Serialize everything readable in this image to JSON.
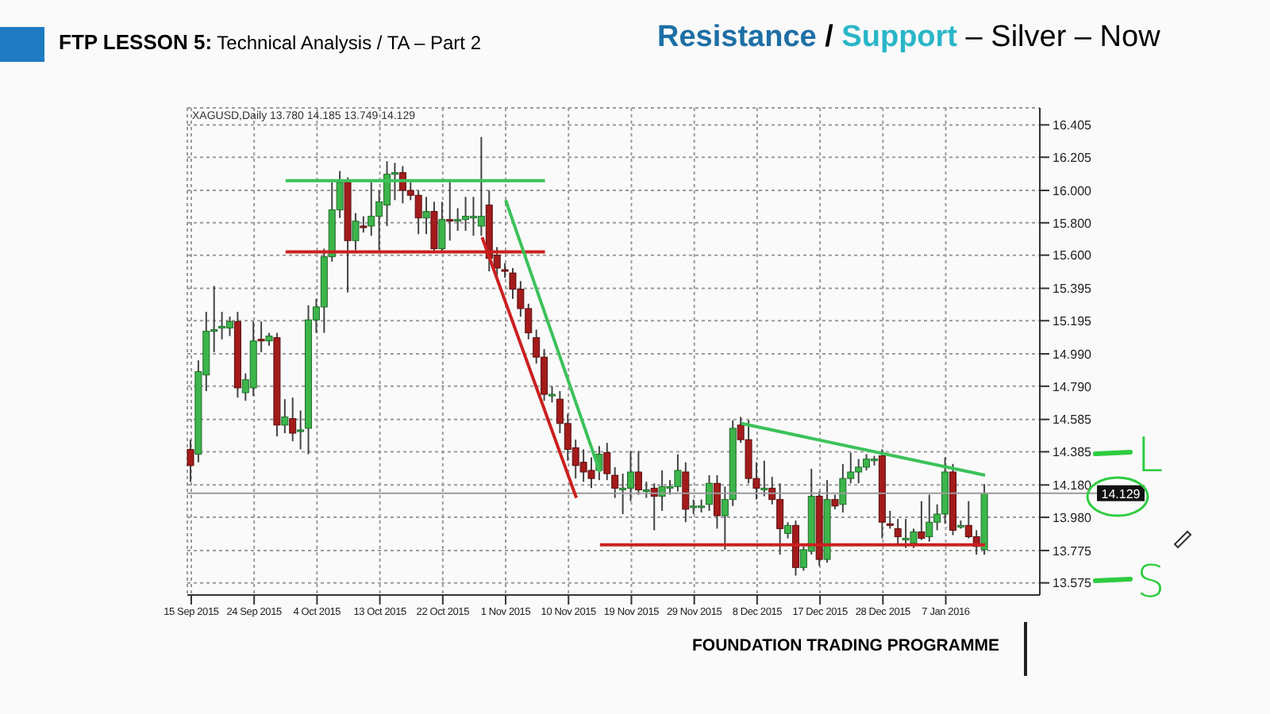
{
  "chart_data": {
    "type": "candlestick",
    "title": "Resistance / Support – Silver – Now",
    "subtitle": "FTP LESSON 5: Technical Analysis / TA – Part 2",
    "annotations": [
      "XAGUSD,Daily 13.780 14.185 13.749 14.129",
      "FOUNDATION TRADING PROGRAMME",
      "L",
      "S"
    ],
    "categories": [
      "15 Sep 2015",
      null,
      null,
      null,
      null,
      null,
      null,
      null,
      "24 Sep 2015",
      null,
      null,
      null,
      null,
      null,
      null,
      null,
      "4 Oct 2015",
      null,
      null,
      null,
      null,
      null,
      null,
      null,
      "13 Oct 2015",
      null,
      null,
      null,
      null,
      null,
      null,
      null,
      "22 Oct 2015",
      null,
      null,
      null,
      null,
      null,
      null,
      null,
      "1 Nov 2015",
      null,
      null,
      null,
      null,
      null,
      null,
      null,
      "10 Nov 2015",
      null,
      null,
      null,
      null,
      null,
      null,
      null,
      "19 Nov 2015",
      null,
      null,
      null,
      null,
      null,
      null,
      null,
      "29 Nov 2015",
      null,
      null,
      null,
      null,
      null,
      null,
      null,
      "8 Dec 2015",
      null,
      null,
      null,
      null,
      null,
      null,
      null,
      "17 Dec 2015",
      null,
      null,
      null,
      null,
      null,
      null,
      null,
      "28 Dec 2015",
      null,
      null,
      null,
      null,
      null,
      null,
      null,
      "7 Jan 2016",
      null,
      null,
      null,
      null,
      null
    ],
    "ohlc": [
      [
        14.4,
        14.46,
        14.2,
        14.3
      ],
      [
        14.37,
        14.95,
        14.32,
        14.88
      ],
      [
        14.86,
        15.25,
        14.76,
        15.13
      ],
      [
        15.13,
        15.41,
        15.0,
        15.14
      ],
      [
        15.15,
        15.25,
        15.08,
        15.16
      ],
      [
        15.15,
        15.22,
        15.1,
        15.19
      ],
      [
        15.19,
        15.25,
        14.72,
        14.78
      ],
      [
        14.75,
        14.87,
        14.7,
        14.83
      ],
      [
        14.78,
        15.19,
        14.73,
        15.07
      ],
      [
        15.08,
        15.19,
        15.0,
        15.07
      ],
      [
        15.07,
        15.12,
        15.04,
        15.1
      ],
      [
        15.09,
        15.12,
        14.48,
        14.55
      ],
      [
        14.55,
        14.71,
        14.5,
        14.6
      ],
      [
        14.59,
        14.72,
        14.45,
        14.5
      ],
      [
        14.51,
        14.64,
        14.4,
        14.52
      ],
      [
        14.53,
        15.29,
        14.37,
        15.2
      ],
      [
        15.2,
        15.33,
        15.12,
        15.28
      ],
      [
        15.28,
        15.64,
        15.12,
        15.59
      ],
      [
        15.59,
        16.05,
        15.56,
        15.88
      ],
      [
        15.88,
        16.12,
        15.83,
        16.05
      ],
      [
        16.05,
        16.08,
        15.37,
        15.69
      ],
      [
        15.69,
        15.86,
        15.63,
        15.81
      ],
      [
        15.78,
        15.84,
        15.74,
        15.77
      ],
      [
        15.78,
        16.05,
        15.72,
        15.84
      ],
      [
        15.84,
        16.0,
        15.63,
        15.93
      ],
      [
        15.91,
        16.18,
        15.78,
        16.1
      ],
      [
        16.1,
        16.17,
        15.94,
        16.11
      ],
      [
        16.11,
        16.15,
        15.92,
        16.0
      ],
      [
        16.0,
        16.05,
        15.94,
        15.97
      ],
      [
        15.97,
        16.0,
        15.73,
        15.83
      ],
      [
        15.83,
        15.96,
        15.73,
        15.87
      ],
      [
        15.87,
        15.93,
        15.62,
        15.64
      ],
      [
        15.64,
        15.93,
        15.62,
        15.82
      ],
      [
        15.82,
        16.07,
        15.69,
        15.81
      ],
      [
        15.82,
        15.89,
        15.75,
        15.82
      ],
      [
        15.82,
        15.96,
        15.75,
        15.84
      ],
      [
        15.84,
        15.96,
        15.72,
        15.84
      ],
      [
        15.78,
        16.33,
        15.72,
        15.84
      ],
      [
        15.91,
        16.0,
        15.5,
        15.58
      ],
      [
        15.6,
        15.65,
        15.47,
        15.52
      ],
      [
        15.51,
        15.55,
        15.46,
        15.5
      ],
      [
        15.49,
        15.52,
        15.33,
        15.39
      ],
      [
        15.39,
        15.44,
        15.22,
        15.27
      ],
      [
        15.27,
        15.3,
        15.08,
        15.12
      ],
      [
        15.09,
        15.14,
        14.93,
        14.97
      ],
      [
        14.97,
        15.02,
        14.7,
        14.74
      ],
      [
        14.74,
        14.79,
        14.69,
        14.74
      ],
      [
        14.71,
        14.76,
        14.5,
        14.56
      ],
      [
        14.56,
        14.62,
        14.33,
        14.4
      ],
      [
        14.41,
        14.46,
        14.22,
        14.3
      ],
      [
        14.32,
        14.4,
        14.2,
        14.26
      ],
      [
        14.27,
        14.35,
        14.16,
        14.22
      ],
      [
        14.27,
        14.42,
        14.21,
        14.37
      ],
      [
        14.38,
        14.44,
        14.21,
        14.25
      ],
      [
        14.24,
        14.29,
        14.1,
        14.16
      ],
      [
        14.16,
        14.25,
        14.0,
        14.16
      ],
      [
        14.16,
        14.39,
        14.08,
        14.26
      ],
      [
        14.26,
        14.39,
        14.12,
        14.15
      ],
      [
        14.15,
        14.2,
        14.1,
        14.15
      ],
      [
        14.16,
        14.19,
        13.9,
        14.11
      ],
      [
        14.11,
        14.27,
        14.02,
        14.17
      ],
      [
        14.17,
        14.21,
        14.12,
        14.17
      ],
      [
        14.17,
        14.37,
        14.14,
        14.27
      ],
      [
        14.26,
        14.32,
        13.95,
        14.03
      ],
      [
        14.05,
        14.09,
        14.0,
        14.05
      ],
      [
        14.05,
        14.09,
        14.01,
        14.05
      ],
      [
        14.06,
        14.24,
        14.02,
        14.19
      ],
      [
        14.19,
        14.24,
        13.91,
        13.99
      ],
      [
        13.99,
        14.17,
        13.78,
        14.09
      ],
      [
        14.09,
        14.58,
        14.05,
        14.53
      ],
      [
        14.55,
        14.6,
        14.44,
        14.46
      ],
      [
        14.46,
        14.58,
        14.19,
        14.22
      ],
      [
        14.22,
        14.32,
        14.09,
        14.16
      ],
      [
        14.16,
        14.33,
        14.11,
        14.16
      ],
      [
        14.16,
        14.23,
        14.06,
        14.09
      ],
      [
        14.09,
        14.19,
        13.75,
        13.91
      ],
      [
        13.88,
        13.95,
        13.85,
        13.93
      ],
      [
        13.93,
        13.96,
        13.62,
        13.67
      ],
      [
        13.67,
        13.8,
        13.65,
        13.78
      ],
      [
        13.77,
        14.28,
        13.75,
        14.11
      ],
      [
        14.11,
        14.14,
        13.68,
        13.72
      ],
      [
        13.72,
        14.21,
        13.7,
        14.09
      ],
      [
        14.09,
        14.12,
        14.03,
        14.05
      ],
      [
        14.06,
        14.31,
        14.01,
        14.22
      ],
      [
        14.22,
        14.38,
        14.19,
        14.26
      ],
      [
        14.26,
        14.34,
        14.19,
        14.29
      ],
      [
        14.29,
        14.37,
        14.27,
        14.34
      ],
      [
        14.33,
        14.36,
        14.3,
        14.34
      ],
      [
        14.36,
        14.4,
        13.85,
        13.95
      ],
      [
        13.94,
        14.02,
        13.91,
        13.93
      ],
      [
        13.91,
        13.97,
        13.81,
        13.86
      ],
      [
        13.85,
        13.97,
        13.79,
        13.85
      ],
      [
        13.82,
        13.91,
        13.79,
        13.89
      ],
      [
        13.89,
        14.08,
        13.84,
        13.85
      ],
      [
        13.86,
        14.12,
        13.83,
        13.95
      ],
      [
        13.95,
        14.06,
        13.9,
        14.0
      ],
      [
        14.0,
        14.35,
        13.94,
        14.26
      ],
      [
        14.26,
        14.31,
        13.87,
        13.9
      ],
      [
        13.93,
        13.96,
        13.91,
        13.93
      ],
      [
        13.93,
        14.08,
        13.85,
        13.86
      ],
      [
        13.86,
        13.9,
        13.75,
        13.8
      ],
      [
        13.78,
        14.185,
        13.749,
        14.129
      ]
    ],
    "series": [
      {
        "type": "line",
        "color": "#3cc25a",
        "values": [
          null,
          null,
          null,
          null,
          null,
          null,
          null,
          null,
          null,
          null,
          null,
          null,
          16.06,
          null,
          null,
          null,
          null,
          null,
          null,
          null,
          null,
          null,
          null,
          null,
          null,
          null,
          null,
          null,
          null,
          null,
          null,
          null,
          null,
          null,
          null,
          null,
          null,
          null,
          null,
          null,
          null,
          null,
          null,
          null,
          null,
          16.06,
          null,
          null,
          null,
          null,
          null,
          null,
          null,
          null,
          null,
          null,
          null,
          null,
          null,
          null,
          null,
          null,
          null,
          null,
          null,
          null,
          null,
          null,
          null,
          null,
          null,
          null,
          null,
          null,
          null,
          null,
          null,
          null,
          null,
          null,
          null,
          null,
          null,
          null,
          null,
          null,
          null,
          null,
          null,
          null,
          null,
          null,
          null,
          null,
          null,
          null,
          null,
          null,
          null,
          null,
          null,
          null
        ]
      },
      {
        "type": "line",
        "color": "#cc1f1f",
        "values": [
          null,
          null,
          null,
          null,
          null,
          null,
          null,
          null,
          null,
          null,
          null,
          null,
          15.62,
          null,
          null,
          null,
          null,
          null,
          null,
          null,
          null,
          null,
          null,
          null,
          null,
          null,
          null,
          null,
          null,
          null,
          null,
          null,
          null,
          null,
          null,
          null,
          null,
          null,
          null,
          null,
          null,
          null,
          null,
          null,
          null,
          15.62,
          null,
          null,
          null,
          null,
          null,
          null,
          null,
          null,
          null,
          null,
          null,
          null,
          null,
          null,
          null,
          null,
          null,
          null,
          null,
          null,
          null,
          null,
          null,
          null,
          null,
          null,
          null,
          null,
          null,
          null,
          null,
          null,
          null,
          null,
          null,
          null,
          null,
          null,
          null,
          null,
          null,
          null,
          null,
          null,
          null,
          null,
          null,
          null,
          null,
          null,
          null,
          null,
          null,
          null,
          null,
          null
        ]
      },
      {
        "type": "line",
        "color": "#3cc25a",
        "values": [
          null,
          null,
          null,
          null,
          null,
          null,
          null,
          null,
          null,
          null,
          null,
          null,
          null,
          null,
          null,
          null,
          null,
          null,
          null,
          null,
          null,
          null,
          null,
          null,
          null,
          null,
          null,
          null,
          null,
          null,
          null,
          null,
          null,
          null,
          null,
          null,
          null,
          null,
          null,
          null,
          15.94,
          null,
          null,
          null,
          null,
          null,
          null,
          null,
          null,
          null,
          null,
          null,
          14.26,
          null,
          null,
          null,
          null,
          null,
          null,
          null,
          null,
          null,
          null,
          null,
          null,
          null,
          null,
          null,
          null,
          null,
          null,
          null,
          null,
          null,
          null,
          null,
          null,
          null,
          null,
          null,
          null,
          null,
          null,
          null,
          null,
          null,
          null,
          null,
          null,
          null,
          null,
          null,
          null,
          null,
          null,
          null,
          null,
          null,
          null,
          null,
          null,
          null
        ]
      },
      {
        "type": "line",
        "color": "#cc1f1f",
        "values": [
          null,
          null,
          null,
          null,
          null,
          null,
          null,
          null,
          null,
          null,
          null,
          null,
          null,
          null,
          null,
          null,
          null,
          null,
          null,
          null,
          null,
          null,
          null,
          null,
          null,
          null,
          null,
          null,
          null,
          null,
          null,
          null,
          null,
          null,
          null,
          null,
          null,
          15.71,
          null,
          null,
          null,
          null,
          null,
          null,
          null,
          null,
          null,
          null,
          null,
          14.1,
          null,
          null,
          null,
          null,
          null,
          null,
          null,
          null,
          null,
          null,
          null,
          null,
          null,
          null,
          null,
          null,
          null,
          null,
          null,
          null,
          null,
          null,
          null,
          null,
          null,
          null,
          null,
          null,
          null,
          null,
          null,
          null,
          null,
          null,
          null,
          null,
          null,
          null,
          null,
          null,
          null,
          null,
          null,
          null,
          null,
          null,
          null,
          null,
          null,
          null,
          null,
          null
        ]
      },
      {
        "type": "line",
        "color": "#cc1f1f",
        "values": [
          null,
          null,
          null,
          null,
          null,
          null,
          null,
          null,
          null,
          null,
          null,
          null,
          null,
          null,
          null,
          null,
          null,
          null,
          null,
          null,
          null,
          null,
          null,
          null,
          null,
          null,
          null,
          null,
          null,
          null,
          null,
          null,
          null,
          null,
          null,
          null,
          null,
          null,
          null,
          null,
          null,
          null,
          null,
          null,
          null,
          null,
          null,
          null,
          null,
          null,
          null,
          null,
          13.81,
          null,
          null,
          null,
          null,
          null,
          null,
          null,
          null,
          null,
          null,
          null,
          null,
          null,
          null,
          null,
          null,
          null,
          null,
          null,
          null,
          null,
          null,
          null,
          null,
          null,
          null,
          null,
          null,
          null,
          null,
          null,
          null,
          null,
          null,
          null,
          null,
          null,
          null,
          null,
          null,
          null,
          null,
          null,
          null,
          null,
          null,
          null,
          null,
          13.81
        ]
      },
      {
        "type": "line",
        "color": "#3cc25a",
        "values": [
          null,
          null,
          null,
          null,
          null,
          null,
          null,
          null,
          null,
          null,
          null,
          null,
          null,
          null,
          null,
          null,
          null,
          null,
          null,
          null,
          null,
          null,
          null,
          null,
          null,
          null,
          null,
          null,
          null,
          null,
          null,
          null,
          null,
          null,
          null,
          null,
          null,
          null,
          null,
          null,
          null,
          null,
          null,
          null,
          null,
          null,
          null,
          null,
          null,
          null,
          null,
          null,
          null,
          null,
          null,
          null,
          null,
          null,
          null,
          null,
          null,
          null,
          null,
          null,
          null,
          null,
          null,
          null,
          null,
          null,
          14.56,
          null,
          null,
          null,
          null,
          null,
          null,
          null,
          null,
          null,
          null,
          null,
          null,
          null,
          null,
          null,
          null,
          null,
          null,
          null,
          null,
          null,
          null,
          null,
          null,
          null,
          null,
          null,
          null,
          null,
          null,
          14.24
        ]
      }
    ],
    "ylim": [
      13.5,
      16.51
    ],
    "yticks": [
      {
        "value": 16.405,
        "label": "16.405"
      },
      {
        "value": 16.205,
        "label": "16.205"
      },
      {
        "value": 16.0,
        "label": "16.000"
      },
      {
        "value": 15.8,
        "label": "15.800"
      },
      {
        "value": 15.6,
        "label": "15.600"
      },
      {
        "value": 15.395,
        "label": "15.395"
      },
      {
        "value": 15.195,
        "label": "15.195"
      },
      {
        "value": 14.99,
        "label": "14.990"
      },
      {
        "value": 14.79,
        "label": "14.790"
      },
      {
        "value": 14.585,
        "label": "14.585"
      },
      {
        "value": 14.385,
        "label": "14.385"
      },
      {
        "value": 14.18,
        "label": "14.180"
      },
      {
        "value": 13.98,
        "label": "13.980"
      },
      {
        "value": 13.775,
        "label": "13.775"
      },
      {
        "value": 13.575,
        "label": "13.575"
      }
    ],
    "ref_lines": [
      {
        "axis": "y",
        "value": 14.129,
        "label": "14.129",
        "color": "#9a9a9a"
      }
    ],
    "grid": true,
    "legend": false
  }
}
